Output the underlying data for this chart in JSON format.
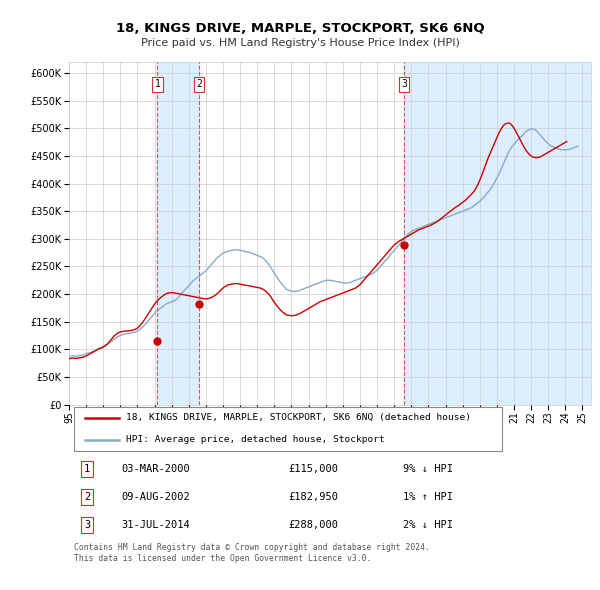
{
  "title": "18, KINGS DRIVE, MARPLE, STOCKPORT, SK6 6NQ",
  "subtitle": "Price paid vs. HM Land Registry's House Price Index (HPI)",
  "legend_line1": "18, KINGS DRIVE, MARPLE, STOCKPORT, SK6 6NQ (detached house)",
  "legend_line2": "HPI: Average price, detached house, Stockport",
  "footer": "Contains HM Land Registry data © Crown copyright and database right 2024.\nThis data is licensed under the Open Government Licence v3.0.",
  "transactions": [
    {
      "num": 1,
      "date": "03-MAR-2000",
      "price": "£115,000",
      "hpi": "9% ↓ HPI",
      "year": 2000.17
    },
    {
      "num": 2,
      "date": "09-AUG-2002",
      "price": "£182,950",
      "hpi": "1% ↑ HPI",
      "year": 2002.6
    },
    {
      "num": 3,
      "date": "31-JUL-2014",
      "price": "£288,000",
      "hpi": "2% ↓ HPI",
      "year": 2014.58
    }
  ],
  "transaction_prices": [
    115000,
    182950,
    288000
  ],
  "shade_ranges": [
    [
      2000.17,
      2002.6
    ],
    [
      2014.58,
      2025.5
    ]
  ],
  "shade_color": "#ddeeff",
  "ylim": [
    0,
    620000
  ],
  "yticks": [
    0,
    50000,
    100000,
    150000,
    200000,
    250000,
    300000,
    350000,
    400000,
    450000,
    500000,
    550000,
    600000
  ],
  "red_color": "#cc0000",
  "blue_color": "#88aacc",
  "dashed_color": "#cc3333",
  "grid_color": "#cccccc",
  "bg_color": "#ffffff",
  "xlim": [
    1995,
    2025.5
  ],
  "xtick_years": [
    1995,
    1996,
    1997,
    1998,
    1999,
    2000,
    2001,
    2002,
    2003,
    2004,
    2005,
    2006,
    2007,
    2008,
    2009,
    2010,
    2011,
    2012,
    2013,
    2014,
    2015,
    2016,
    2017,
    2018,
    2019,
    2020,
    2021,
    2022,
    2023,
    2024,
    2025
  ],
  "hpi_x": [
    1995.0,
    1995.083,
    1995.167,
    1995.25,
    1995.333,
    1995.417,
    1995.5,
    1995.583,
    1995.667,
    1995.75,
    1995.833,
    1995.917,
    1996.0,
    1996.083,
    1996.167,
    1996.25,
    1996.333,
    1996.417,
    1996.5,
    1996.583,
    1996.667,
    1996.75,
    1996.833,
    1996.917,
    1997.0,
    1997.083,
    1997.167,
    1997.25,
    1997.333,
    1997.417,
    1997.5,
    1997.583,
    1997.667,
    1997.75,
    1997.833,
    1997.917,
    1998.0,
    1998.083,
    1998.167,
    1998.25,
    1998.333,
    1998.417,
    1998.5,
    1998.583,
    1998.667,
    1998.75,
    1998.833,
    1998.917,
    1999.0,
    1999.083,
    1999.167,
    1999.25,
    1999.333,
    1999.417,
    1999.5,
    1999.583,
    1999.667,
    1999.75,
    1999.833,
    1999.917,
    2000.0,
    2000.083,
    2000.167,
    2000.25,
    2000.333,
    2000.417,
    2000.5,
    2000.583,
    2000.667,
    2000.75,
    2000.833,
    2000.917,
    2001.0,
    2001.083,
    2001.167,
    2001.25,
    2001.333,
    2001.417,
    2001.5,
    2001.583,
    2001.667,
    2001.75,
    2001.833,
    2001.917,
    2002.0,
    2002.083,
    2002.167,
    2002.25,
    2002.333,
    2002.417,
    2002.5,
    2002.583,
    2002.667,
    2002.75,
    2002.833,
    2002.917,
    2003.0,
    2003.083,
    2003.167,
    2003.25,
    2003.333,
    2003.417,
    2003.5,
    2003.583,
    2003.667,
    2003.75,
    2003.833,
    2003.917,
    2004.0,
    2004.083,
    2004.167,
    2004.25,
    2004.333,
    2004.417,
    2004.5,
    2004.583,
    2004.667,
    2004.75,
    2004.833,
    2004.917,
    2005.0,
    2005.083,
    2005.167,
    2005.25,
    2005.333,
    2005.417,
    2005.5,
    2005.583,
    2005.667,
    2005.75,
    2005.833,
    2005.917,
    2006.0,
    2006.083,
    2006.167,
    2006.25,
    2006.333,
    2006.417,
    2006.5,
    2006.583,
    2006.667,
    2006.75,
    2006.833,
    2006.917,
    2007.0,
    2007.083,
    2007.167,
    2007.25,
    2007.333,
    2007.417,
    2007.5,
    2007.583,
    2007.667,
    2007.75,
    2007.833,
    2007.917,
    2008.0,
    2008.083,
    2008.167,
    2008.25,
    2008.333,
    2008.417,
    2008.5,
    2008.583,
    2008.667,
    2008.75,
    2008.833,
    2008.917,
    2009.0,
    2009.083,
    2009.167,
    2009.25,
    2009.333,
    2009.417,
    2009.5,
    2009.583,
    2009.667,
    2009.75,
    2009.833,
    2009.917,
    2010.0,
    2010.083,
    2010.167,
    2010.25,
    2010.333,
    2010.417,
    2010.5,
    2010.583,
    2010.667,
    2010.75,
    2010.833,
    2010.917,
    2011.0,
    2011.083,
    2011.167,
    2011.25,
    2011.333,
    2011.417,
    2011.5,
    2011.583,
    2011.667,
    2011.75,
    2011.833,
    2011.917,
    2012.0,
    2012.083,
    2012.167,
    2012.25,
    2012.333,
    2012.417,
    2012.5,
    2012.583,
    2012.667,
    2012.75,
    2012.833,
    2012.917,
    2013.0,
    2013.083,
    2013.167,
    2013.25,
    2013.333,
    2013.417,
    2013.5,
    2013.583,
    2013.667,
    2013.75,
    2013.833,
    2013.917,
    2014.0,
    2014.083,
    2014.167,
    2014.25,
    2014.333,
    2014.417,
    2014.5,
    2014.583,
    2014.667,
    2014.75,
    2014.833,
    2014.917,
    2015.0,
    2015.083,
    2015.167,
    2015.25,
    2015.333,
    2015.417,
    2015.5,
    2015.583,
    2015.667,
    2015.75,
    2015.833,
    2015.917,
    2016.0,
    2016.083,
    2016.167,
    2016.25,
    2016.333,
    2016.417,
    2016.5,
    2016.583,
    2016.667,
    2016.75,
    2016.833,
    2016.917,
    2017.0,
    2017.083,
    2017.167,
    2017.25,
    2017.333,
    2017.417,
    2017.5,
    2017.583,
    2017.667,
    2017.75,
    2017.833,
    2017.917,
    2018.0,
    2018.083,
    2018.167,
    2018.25,
    2018.333,
    2018.417,
    2018.5,
    2018.583,
    2018.667,
    2018.75,
    2018.833,
    2018.917,
    2019.0,
    2019.083,
    2019.167,
    2019.25,
    2019.333,
    2019.417,
    2019.5,
    2019.583,
    2019.667,
    2019.75,
    2019.833,
    2019.917,
    2020.0,
    2020.083,
    2020.167,
    2020.25,
    2020.333,
    2020.417,
    2020.5,
    2020.583,
    2020.667,
    2020.75,
    2020.833,
    2020.917,
    2021.0,
    2021.083,
    2021.167,
    2021.25,
    2021.333,
    2021.417,
    2021.5,
    2021.583,
    2021.667,
    2021.75,
    2021.833,
    2021.917,
    2022.0,
    2022.083,
    2022.167,
    2022.25,
    2022.333,
    2022.417,
    2022.5,
    2022.583,
    2022.667,
    2022.75,
    2022.833,
    2022.917,
    2023.0,
    2023.083,
    2023.167,
    2023.25,
    2023.333,
    2023.417,
    2023.5,
    2023.583,
    2023.667,
    2023.75,
    2023.833,
    2023.917,
    2024.0,
    2024.083,
    2024.167,
    2024.25,
    2024.333,
    2024.417,
    2024.5,
    2024.583,
    2024.667,
    2024.75
  ],
  "hpi_y": [
    87000,
    87500,
    88000,
    88500,
    88000,
    87500,
    88000,
    88500,
    89000,
    89500,
    90000,
    91000,
    92000,
    93000,
    93500,
    94000,
    95000,
    96000,
    97000,
    98000,
    99000,
    100000,
    101000,
    102000,
    104000,
    105000,
    107000,
    109000,
    111000,
    113000,
    115000,
    117000,
    119000,
    121000,
    123000,
    124000,
    125000,
    126000,
    127000,
    127500,
    128000,
    128500,
    129000,
    129500,
    130000,
    130500,
    131000,
    132000,
    133000,
    135000,
    137000,
    139000,
    141000,
    144000,
    147000,
    150000,
    153000,
    156000,
    159000,
    162000,
    165000,
    168000,
    170000,
    172000,
    174000,
    176000,
    178000,
    180000,
    182000,
    183000,
    184000,
    185000,
    186000,
    187000,
    188000,
    190000,
    192000,
    195000,
    198000,
    201000,
    204000,
    207000,
    210000,
    212000,
    215000,
    218000,
    221000,
    224000,
    226000,
    228000,
    230000,
    232000,
    234000,
    236000,
    238000,
    240000,
    242000,
    245000,
    248000,
    251000,
    254000,
    257000,
    260000,
    263000,
    266000,
    268000,
    270000,
    272000,
    274000,
    275000,
    276000,
    277000,
    278000,
    278500,
    279000,
    279500,
    280000,
    280000,
    280000,
    279500,
    279000,
    278500,
    278000,
    277500,
    277000,
    276500,
    276000,
    275000,
    274000,
    273000,
    272000,
    271000,
    270000,
    269000,
    268000,
    267000,
    265000,
    263000,
    260000,
    257000,
    254000,
    250000,
    246000,
    242000,
    238000,
    234000,
    230000,
    226000,
    222000,
    219000,
    216000,
    213000,
    210000,
    208000,
    207000,
    206000,
    205500,
    205000,
    205000,
    205000,
    205500,
    206000,
    207000,
    208000,
    209000,
    210000,
    211000,
    212000,
    213000,
    214000,
    215000,
    216000,
    217000,
    218000,
    219000,
    220000,
    221000,
    222000,
    223000,
    224000,
    224500,
    225000,
    225000,
    225000,
    224500,
    224000,
    223500,
    223000,
    222500,
    222000,
    221500,
    221000,
    220500,
    220000,
    220000,
    220000,
    220500,
    221000,
    222000,
    223000,
    224000,
    225000,
    226000,
    227000,
    228000,
    229000,
    230000,
    231000,
    232000,
    233000,
    234000,
    235000,
    236000,
    237500,
    239000,
    241000,
    243000,
    246000,
    249000,
    252000,
    255000,
    258000,
    261000,
    264000,
    267000,
    270000,
    273000,
    276000,
    279000,
    282000,
    285000,
    288000,
    291000,
    294000,
    297000,
    300000,
    303000,
    306000,
    309000,
    311000,
    313000,
    315000,
    316000,
    317000,
    318000,
    319000,
    320000,
    321000,
    322000,
    323000,
    324000,
    325000,
    326000,
    327000,
    328000,
    329000,
    330000,
    331000,
    332000,
    333000,
    334000,
    335000,
    336000,
    337000,
    338000,
    339000,
    340000,
    341000,
    342000,
    343000,
    344000,
    345000,
    346000,
    347000,
    348000,
    349000,
    350000,
    351000,
    352000,
    353000,
    354000,
    355000,
    356000,
    358000,
    360000,
    362000,
    364000,
    366000,
    368000,
    370000,
    373000,
    376000,
    379000,
    382000,
    385000,
    388000,
    392000,
    396000,
    400000,
    405000,
    410000,
    415000,
    420000,
    426000,
    432000,
    438000,
    444000,
    450000,
    456000,
    460000,
    464000,
    468000,
    471000,
    474000,
    477000,
    480000,
    483000,
    485000,
    487000,
    490000,
    493000,
    495000,
    497000,
    498000,
    499000,
    499000,
    498000,
    497000,
    495000,
    492000,
    489000,
    486000,
    483000,
    480000,
    477000,
    474000,
    472000,
    470000,
    468000,
    467000,
    466000,
    465000,
    464000,
    463000,
    462000,
    461000,
    461000,
    461000,
    461000,
    461000,
    461500,
    462000,
    463000,
    464000,
    465000,
    466000,
    467000,
    468000,
    469000,
    470000,
    471000,
    472000,
    473000,
    474000,
    475000
  ],
  "price_y": [
    83000,
    83500,
    84000,
    84200,
    83800,
    83500,
    84000,
    84500,
    85000,
    85500,
    86000,
    87000,
    88000,
    89500,
    91000,
    92500,
    94000,
    95500,
    97000,
    98500,
    100000,
    101500,
    102500,
    103000,
    104500,
    106000,
    108000,
    110000,
    113000,
    116000,
    119000,
    122000,
    125000,
    127000,
    129000,
    130500,
    131500,
    132000,
    132500,
    132800,
    133000,
    133200,
    133500,
    134000,
    134500,
    135000,
    136000,
    137000,
    138500,
    141000,
    144000,
    147000,
    150000,
    154000,
    158000,
    162000,
    166000,
    170000,
    174000,
    178000,
    182000,
    185000,
    188000,
    190500,
    193000,
    195000,
    197000,
    199000,
    200500,
    201500,
    202000,
    202500,
    202500,
    202500,
    202000,
    201500,
    201000,
    200500,
    200000,
    199500,
    199000,
    198500,
    198000,
    197500,
    197000,
    196500,
    196000,
    195500,
    195000,
    194500,
    194000,
    193500,
    193000,
    192500,
    192000,
    191500,
    191000,
    191500,
    192000,
    193000,
    194000,
    195500,
    197000,
    199000,
    201000,
    203500,
    206000,
    208500,
    211000,
    213000,
    214500,
    216000,
    217000,
    217500,
    218000,
    218500,
    219000,
    219000,
    219000,
    218500,
    218000,
    217500,
    217000,
    216500,
    216000,
    215500,
    215000,
    214500,
    214000,
    213500,
    213000,
    212500,
    212000,
    211500,
    211000,
    210000,
    208500,
    207000,
    205000,
    202500,
    200000,
    197000,
    193000,
    189000,
    185000,
    181500,
    178000,
    175000,
    172000,
    169500,
    167000,
    165000,
    163000,
    162000,
    161500,
    161000,
    161000,
    161000,
    161500,
    162000,
    163000,
    164000,
    165000,
    166500,
    168000,
    169500,
    171000,
    172500,
    174000,
    175500,
    177000,
    178500,
    180000,
    181500,
    183000,
    184500,
    186000,
    187000,
    188000,
    189000,
    190000,
    191000,
    192000,
    193000,
    194000,
    195000,
    196000,
    197000,
    198000,
    199000,
    200000,
    201000,
    202000,
    203000,
    204000,
    205000,
    206000,
    207000,
    208000,
    209000,
    210000,
    211000,
    213000,
    215000,
    217000,
    220000,
    223000,
    226000,
    229000,
    232000,
    235000,
    238000,
    241000,
    244000,
    247000,
    250000,
    253000,
    256000,
    259000,
    262000,
    265000,
    268000,
    271000,
    274000,
    277000,
    280000,
    283000,
    286000,
    289000,
    291000,
    293000,
    295000,
    296500,
    298000,
    299500,
    301000,
    302500,
    304000,
    305500,
    307000,
    308500,
    310000,
    311500,
    313000,
    314500,
    316000,
    317000,
    318000,
    319000,
    320000,
    321000,
    322000,
    323000,
    324000,
    325000,
    326500,
    328000,
    329500,
    331000,
    333000,
    335000,
    337000,
    339000,
    341000,
    343000,
    345000,
    347000,
    349000,
    351000,
    353000,
    355000,
    357000,
    358500,
    360000,
    362000,
    364000,
    366000,
    368000,
    370000,
    372500,
    375000,
    377500,
    380000,
    383000,
    386000,
    390000,
    395000,
    400000,
    406000,
    412000,
    419000,
    426000,
    433000,
    440000,
    447000,
    453000,
    459000,
    465000,
    471000,
    477000,
    483000,
    489000,
    494000,
    499000,
    503000,
    506000,
    508000,
    509000,
    509500,
    509000,
    507000,
    504000,
    500000,
    496000,
    491000,
    486000,
    481000,
    476000,
    471000,
    466000,
    462000,
    458000,
    455000,
    452000,
    450000,
    448500,
    447500,
    447000,
    447000,
    447500,
    448000,
    449000,
    450500,
    452000,
    453500,
    455000,
    456500,
    458000,
    459500,
    461000,
    462500,
    464000,
    465500,
    467000,
    468500,
    470000,
    471500,
    473000,
    474500,
    476000
  ]
}
